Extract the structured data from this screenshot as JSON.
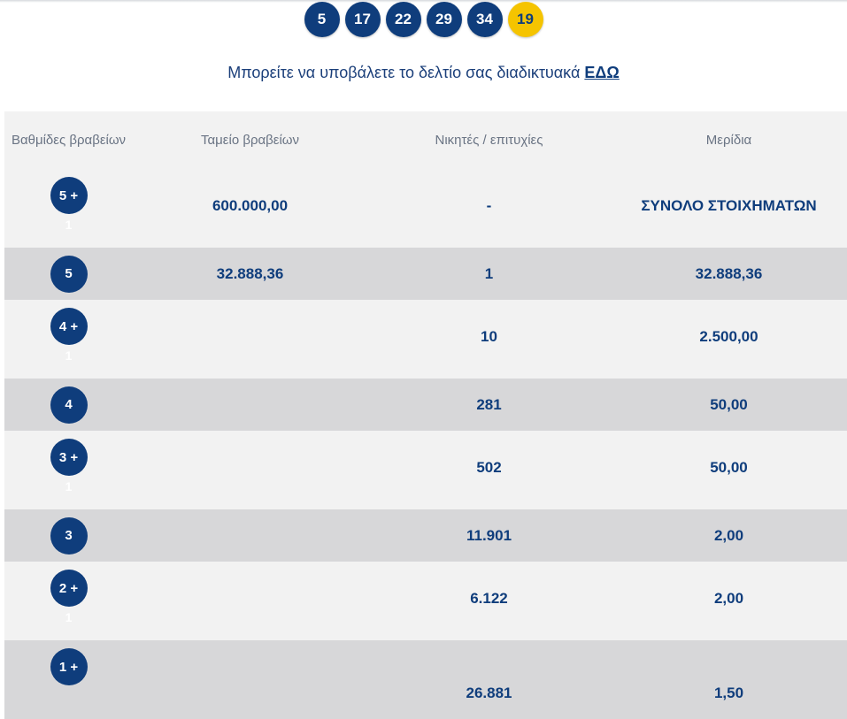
{
  "draw": {
    "numbers": [
      "5",
      "17",
      "22",
      "29",
      "34"
    ],
    "bonus": "19",
    "colors": {
      "number_ball": "#0f3d7c",
      "bonus_ball": "#f5c400"
    }
  },
  "submit": {
    "text": "Μπορείτε να υποβάλετε το δελτίο σας διαδικτυακά",
    "link": "ΕΔΩ"
  },
  "table": {
    "headers": {
      "tier": "Βαθμίδες βραβείων",
      "fund": "Ταμείο βραβείων",
      "winners": "Νικητές / επιτυχίες",
      "share": "Μερίδια"
    },
    "rows": [
      {
        "tier": "5 +",
        "sub": "1",
        "fund": "600.000,00",
        "winners": "-",
        "share": "ΣΥΝΟΛΟ ΣΤΟΙΧΗΜΑΤΩΝ"
      },
      {
        "tier": "5",
        "sub": "",
        "fund": "32.888,36",
        "winners": "1",
        "share": "32.888,36"
      },
      {
        "tier": "4 +",
        "sub": "1",
        "fund": "",
        "winners": "10",
        "share": "2.500,00"
      },
      {
        "tier": "4",
        "sub": "",
        "fund": "",
        "winners": "281",
        "share": "50,00"
      },
      {
        "tier": "3 +",
        "sub": "1",
        "fund": "",
        "winners": "502",
        "share": "50,00"
      },
      {
        "tier": "3",
        "sub": "",
        "fund": "",
        "winners": "11.901",
        "share": "2,00"
      },
      {
        "tier": "2 +",
        "sub": "1",
        "fund": "",
        "winners": "6.122",
        "share": "2,00"
      },
      {
        "tier": "1 +",
        "sub": "",
        "fund": "",
        "winners": "26.881",
        "share": "1,50"
      }
    ]
  }
}
